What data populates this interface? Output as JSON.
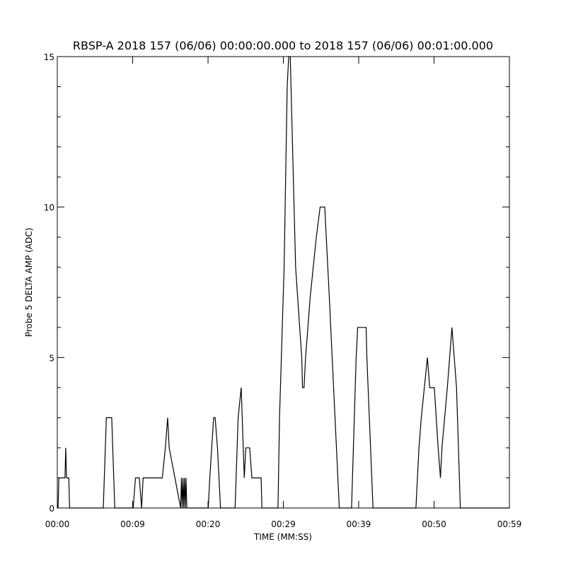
{
  "chart_data": {
    "type": "line",
    "title": "RBSP-A 2018 157 (06/06) 00:00:00.000 to 2018 157 (06/06) 00:01:00.000",
    "xlabel": "TIME (MM:SS)",
    "ylabel": "Probe 5 DELTA AMP (ADC)",
    "xlim": [
      0,
      59
    ],
    "xticks": [
      {
        "value": 0,
        "label": "00:00"
      },
      {
        "value": 9.83,
        "label": "00:09"
      },
      {
        "value": 19.67,
        "label": "00:20"
      },
      {
        "value": 29.5,
        "label": "00:29"
      },
      {
        "value": 39.33,
        "label": "00:39"
      },
      {
        "value": 49.17,
        "label": "00:50"
      },
      {
        "value": 59,
        "label": "00:59"
      }
    ],
    "ylim": [
      0,
      15
    ],
    "yticks": [
      0,
      5,
      10,
      15
    ],
    "y_minor_ticks": [
      1,
      2,
      3,
      4,
      6,
      7,
      8,
      9,
      11,
      12,
      13,
      14
    ],
    "color": "#000000",
    "series": [
      {
        "color": "#000000",
        "x": [
          0.1,
          0.2,
          1.0,
          1.1,
          1.2,
          1.5,
          1.6,
          6.0,
          6.4,
          7.1,
          7.5,
          9.9,
          10.2,
          10.7,
          11.0,
          11.2,
          13.7,
          14.1,
          14.4,
          14.6,
          16.1,
          16.2,
          16.3,
          16.4,
          16.5,
          16.6,
          16.7,
          16.8,
          16.9,
          19.7,
          19.9,
          20.4,
          20.6,
          20.9,
          21.3,
          23.2,
          23.6,
          24.0,
          24.4,
          24.6,
          25.1,
          25.4,
          26.6,
          26.7,
          28.8,
          29.0,
          29.6,
          30.0,
          30.2,
          30.4,
          31.1,
          31.9,
          32.0,
          32.2,
          32.4,
          33.0,
          33.8,
          34.3,
          34.9,
          35.5,
          36.8,
          38.4,
          39.0,
          39.2,
          40.3,
          40.4,
          41.2,
          46.8,
          47.2,
          47.5,
          47.9,
          48.3,
          48.6,
          49.2,
          49.7,
          50.0,
          50.2,
          50.9,
          51.5,
          52.1,
          52.6,
          59
        ],
        "values": [
          0,
          1,
          1,
          2,
          1,
          1,
          0,
          0,
          3,
          3,
          0,
          0,
          1,
          1,
          0,
          1,
          1,
          2,
          3,
          2,
          0,
          1,
          0,
          1,
          0,
          1,
          0,
          1,
          0,
          0,
          1,
          3,
          3,
          2,
          0,
          0,
          3,
          4,
          1,
          2,
          2,
          1,
          1,
          0,
          0,
          3,
          8,
          14,
          15,
          15,
          8,
          5,
          4,
          4,
          5,
          7,
          9,
          10,
          10,
          7,
          0,
          0,
          5,
          6,
          6,
          5,
          0,
          0,
          2,
          3,
          4,
          5,
          4,
          4,
          2,
          1,
          2,
          4,
          6,
          4,
          0,
          0
        ]
      }
    ]
  }
}
